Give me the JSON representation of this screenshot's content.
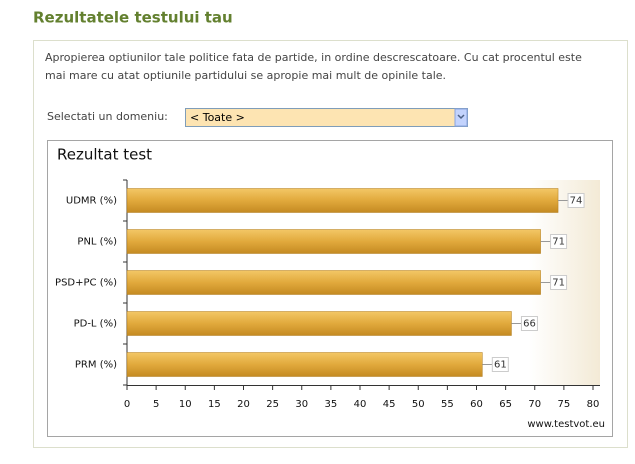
{
  "header": {
    "title": "Rezultatele testului tau"
  },
  "description": [
    "Apropierea optiunilor tale politice fata de partide, in ordine descrescatoare. Cu cat procentul este",
    "mai mare cu atat optiunile partidului se apropie mai mult de opinile tale."
  ],
  "filter": {
    "label": "Selectati un domeniu:",
    "value": "< Toate >"
  },
  "chart_data": {
    "type": "hbar",
    "title": "Rezultat test",
    "categories": [
      "UDMR (%)",
      "PNL (%)",
      "PSD+PC (%)",
      "PD-L (%)",
      "PRM (%)"
    ],
    "values": [
      74,
      71,
      71,
      66,
      61
    ],
    "color": "#dca437",
    "xlim": [
      0,
      80
    ],
    "xticks": [
      0,
      5,
      10,
      15,
      20,
      25,
      30,
      35,
      40,
      45,
      50,
      55,
      60,
      65,
      70,
      75,
      80
    ]
  },
  "footer": "www.testvot.eu"
}
